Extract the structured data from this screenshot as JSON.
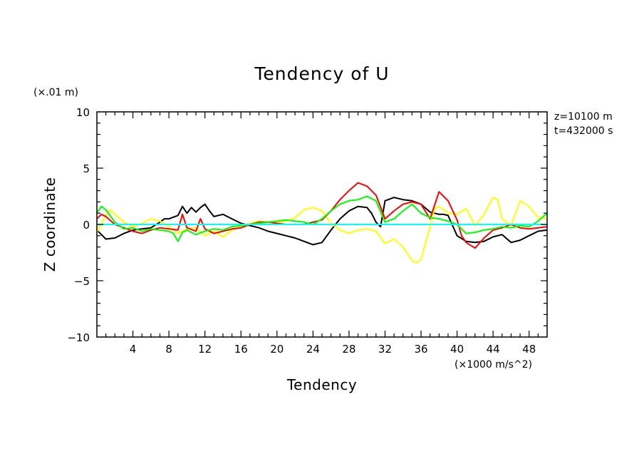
{
  "chart_data": {
    "type": "line",
    "title": "Tendency of U",
    "xlabel": "Tendency",
    "ylabel": "Z coordinate",
    "y_units": "(×.01 m)",
    "x_units": "(×1000 m/s^2)",
    "annotations": [
      "z=10100 m",
      "t=432000 s"
    ],
    "xlim": [
      0,
      50
    ],
    "ylim": [
      -10,
      10
    ],
    "x_ticks": [
      4,
      8,
      12,
      16,
      20,
      24,
      28,
      32,
      36,
      40,
      44,
      48
    ],
    "x_tick_labels": [
      "4",
      "8",
      "12",
      "16",
      "20",
      "24",
      "28",
      "32",
      "36",
      "40",
      "44",
      "48"
    ],
    "y_ticks": [
      -10,
      -5,
      0,
      5,
      10
    ],
    "y_tick_labels": [
      "−10",
      "−5",
      "0",
      "5",
      "10"
    ],
    "series": [
      {
        "name": "black",
        "color": "#000000",
        "x": [
          0,
          1,
          2,
          3,
          4,
          5,
          6,
          7,
          7.5,
          8,
          9,
          9.5,
          10,
          10.5,
          11,
          11.5,
          12,
          12.5,
          13,
          14,
          15,
          16,
          17,
          18,
          19,
          20,
          21,
          22,
          23,
          24,
          25,
          26,
          27,
          28,
          29,
          30,
          30.5,
          31,
          31.5,
          32,
          33,
          34,
          35,
          36,
          37,
          38,
          38.5,
          39,
          40,
          41,
          42,
          43,
          44,
          45,
          46,
          47,
          48,
          49,
          50
        ],
        "values": [
          -0.5,
          -1.3,
          -1.2,
          -0.8,
          -0.5,
          -0.4,
          -0.3,
          0.2,
          0.5,
          0.5,
          0.8,
          1.6,
          1.0,
          1.5,
          1.1,
          1.5,
          1.8,
          1.2,
          0.7,
          0.9,
          0.5,
          0.1,
          -0.1,
          -0.3,
          -0.6,
          -0.8,
          -1.0,
          -1.2,
          -1.5,
          -1.8,
          -1.6,
          -0.5,
          0.5,
          1.2,
          1.6,
          1.5,
          1.0,
          0.2,
          -0.2,
          2.1,
          2.4,
          2.2,
          2.1,
          1.8,
          1.1,
          0.9,
          0.9,
          0.8,
          -1.0,
          -1.5,
          -1.6,
          -1.5,
          -1.1,
          -0.9,
          -1.6,
          -1.4,
          -1.0,
          -0.6,
          -0.5
        ]
      },
      {
        "name": "yellow",
        "color": "#ffff00",
        "x": [
          0,
          1,
          1.5,
          2,
          3,
          4,
          5,
          6,
          7,
          8,
          9,
          10,
          11,
          12,
          13,
          14,
          15,
          16,
          17,
          18,
          19,
          20,
          21,
          22,
          23,
          24,
          25,
          26,
          27,
          28,
          29,
          30,
          31,
          32,
          33,
          34,
          35,
          35.5,
          36,
          37,
          37.5,
          38,
          39,
          40,
          41,
          42,
          43,
          44,
          44.5,
          45,
          46,
          47,
          48,
          49,
          50
        ],
        "values": [
          -0.7,
          0.8,
          1.3,
          0.9,
          0.2,
          -0.2,
          0.1,
          0.5,
          0.3,
          -0.2,
          -0.8,
          -0.4,
          -0.3,
          -1.0,
          -0.6,
          -1.1,
          -0.5,
          -0.2,
          0.1,
          0.3,
          0.2,
          0.2,
          0.3,
          0.6,
          1.3,
          1.5,
          1.2,
          0.1,
          -0.5,
          -0.8,
          -0.5,
          -0.4,
          -0.6,
          -1.7,
          -1.3,
          -2.0,
          -3.2,
          -3.4,
          -3.1,
          -0.2,
          1.4,
          1.6,
          1.0,
          0.9,
          1.4,
          -0.1,
          0.9,
          2.4,
          2.2,
          0.5,
          -0.1,
          2.1,
          1.6,
          0.6,
          0.5
        ]
      },
      {
        "name": "red",
        "color": "#ff0000",
        "x": [
          0,
          0.5,
          1,
          2,
          3,
          4,
          5,
          6,
          7,
          8,
          9,
          9.5,
          10,
          11,
          11.5,
          12,
          13,
          14,
          15,
          16,
          17,
          18,
          19,
          20,
          21,
          22,
          23,
          24,
          25,
          26,
          27,
          28,
          29,
          30,
          31,
          32,
          33,
          34,
          35,
          36,
          37,
          38,
          39,
          40,
          40.5,
          41,
          42,
          43,
          44,
          45,
          46,
          47,
          48,
          49,
          50
        ],
        "values": [
          0.5,
          0.9,
          0.7,
          0.0,
          -0.3,
          -0.6,
          -0.8,
          -0.5,
          -0.3,
          -0.4,
          -0.5,
          0.9,
          -0.3,
          -0.6,
          0.5,
          -0.4,
          -0.8,
          -0.6,
          -0.4,
          -0.3,
          0.0,
          0.2,
          0.2,
          0.1,
          0.0,
          0.0,
          0.0,
          0.2,
          0.4,
          1.2,
          2.2,
          3.0,
          3.7,
          3.4,
          2.6,
          0.5,
          1.2,
          1.8,
          2.0,
          1.8,
          0.5,
          2.9,
          2.1,
          0.4,
          -1.0,
          -1.6,
          -2.1,
          -1.2,
          -0.5,
          -0.3,
          0.0,
          -0.3,
          -0.4,
          -0.3,
          -0.2
        ]
      },
      {
        "name": "green",
        "color": "#00ff00",
        "x": [
          0,
          0.5,
          1,
          2,
          3,
          4,
          5,
          6,
          7,
          8,
          8.5,
          9,
          9.5,
          10,
          11,
          12,
          13,
          14,
          15,
          16,
          17,
          18,
          19,
          20,
          21,
          22,
          23,
          24,
          25,
          26,
          27,
          28,
          29,
          30,
          31,
          32,
          33,
          34,
          35,
          36,
          37,
          38,
          39,
          40,
          41,
          42,
          43,
          44,
          45,
          46,
          47,
          48,
          49,
          50
        ],
        "values": [
          1.0,
          1.6,
          1.3,
          0.2,
          -0.4,
          -0.3,
          -0.6,
          -0.4,
          -0.5,
          -0.6,
          -0.8,
          -1.5,
          -0.7,
          -0.5,
          -0.9,
          -0.6,
          -0.4,
          -0.5,
          -0.2,
          -0.1,
          0.0,
          0.1,
          0.2,
          0.3,
          0.4,
          0.3,
          0.2,
          0.0,
          0.5,
          1.2,
          1.8,
          2.1,
          2.2,
          2.5,
          2.1,
          0.2,
          0.5,
          1.2,
          1.8,
          1.0,
          0.6,
          0.5,
          0.3,
          0.0,
          -0.8,
          -0.7,
          -0.5,
          -0.4,
          -0.2,
          -0.3,
          -0.1,
          -0.2,
          0.3,
          1.0
        ]
      },
      {
        "name": "cyan",
        "color": "#00ffff",
        "x": [
          0,
          50
        ],
        "values": [
          0,
          0
        ]
      }
    ]
  }
}
